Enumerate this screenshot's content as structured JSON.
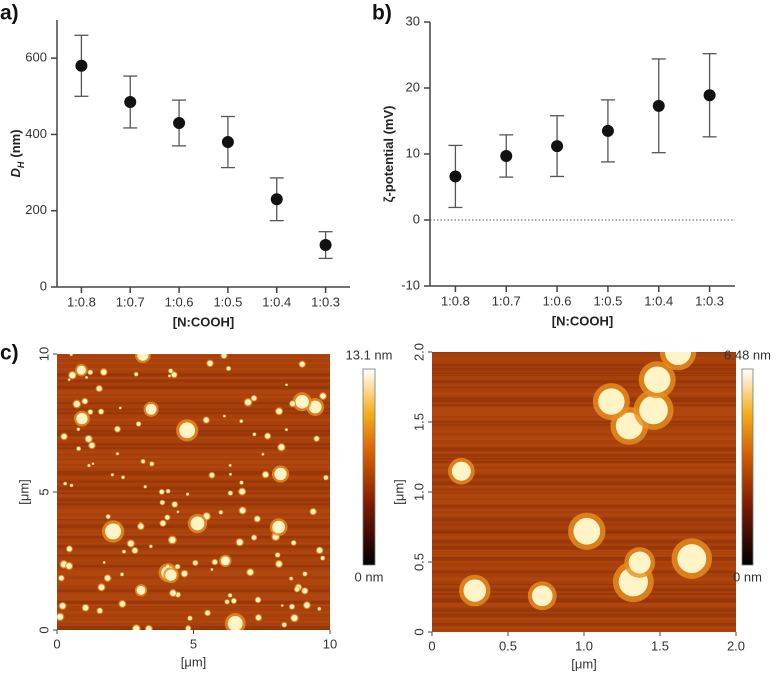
{
  "chart_data": [
    {
      "type": "errorbar",
      "panel_label": "a)",
      "categories": [
        "1:0.8",
        "1:0.7",
        "1:0.6",
        "1:0.5",
        "1:0.4",
        "1:0.3"
      ],
      "values": [
        580,
        485,
        430,
        380,
        230,
        110
      ],
      "errors": [
        80,
        68,
        60,
        67,
        56,
        35
      ],
      "color": "#111111",
      "ylim": [
        0,
        700
      ],
      "yticks": [
        0,
        200,
        400,
        600
      ],
      "xlabel": "[N:COOH]",
      "ylabel": [
        "D",
        "H",
        "(nm)"
      ]
    },
    {
      "type": "errorbar",
      "panel_label": "b)",
      "categories": [
        "1:0.8",
        "1:0.7",
        "1:0.6",
        "1:0.5",
        "1:0.4",
        "1:0.3"
      ],
      "values": [
        6.6,
        9.7,
        11.2,
        13.5,
        17.3,
        18.9
      ],
      "errors": [
        4.7,
        3.2,
        4.6,
        4.7,
        7.1,
        6.3
      ],
      "color": "#111111",
      "ylim": [
        -10,
        30
      ],
      "yticks": [
        -10,
        0,
        10,
        20,
        30
      ],
      "reference_line": 0,
      "xlabel": "[N:COOH]",
      "ylabel": [
        "ζ-potential (mV)"
      ]
    },
    {
      "type": "afm_image",
      "panel_label": "c)",
      "xlim": [
        0,
        10
      ],
      "ylim": [
        0,
        10
      ],
      "xticks": [
        0,
        5,
        10
      ],
      "yticks": [
        0,
        5,
        10
      ],
      "xlabel": "[μm]",
      "ylabel": "[μm]",
      "colorbar_max_label": "13.1 nm",
      "colorbar_min_label": "0 nm"
    },
    {
      "type": "afm_image",
      "xlim": [
        0,
        2
      ],
      "ylim": [
        0,
        2
      ],
      "xticks": [
        0,
        0.5,
        {
          "value": 1,
          "label": "1.0"
        },
        1.5,
        {
          "value": 2,
          "label": "2.0"
        }
      ],
      "yticks": [
        0,
        0.5,
        {
          "value": 1,
          "label": "1.0"
        },
        1.5,
        {
          "value": 2,
          "label": "2.0"
        }
      ],
      "xlabel": "[μm]",
      "ylabel": "[μm]",
      "colorbar_max_label": "6.48 nm",
      "colorbar_min_label": "0 nm"
    }
  ]
}
